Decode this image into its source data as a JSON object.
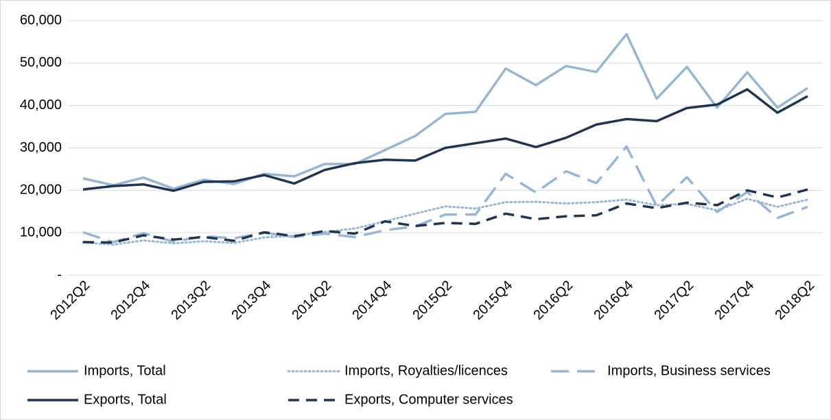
{
  "chart_data": {
    "type": "line",
    "categories": [
      "2012Q2",
      null,
      "2012Q4",
      null,
      "2013Q2",
      null,
      "2013Q4",
      null,
      "2014Q2",
      null,
      "2014Q4",
      null,
      "2015Q2",
      null,
      "2015Q4",
      null,
      "2016Q2",
      null,
      "2016Q4",
      null,
      "2017Q2",
      null,
      "2017Q4",
      null,
      "2018Q2"
    ],
    "ylim": [
      0,
      60000
    ],
    "yticks": [
      {
        "value": 0,
        "label": "-"
      },
      {
        "value": 10000,
        "label": "10,000"
      },
      {
        "value": 20000,
        "label": "20,000"
      },
      {
        "value": 30000,
        "label": "30,000"
      },
      {
        "value": 40000,
        "label": "40,000"
      },
      {
        "value": 50000,
        "label": "50,000"
      },
      {
        "value": 60000,
        "label": "60,000"
      }
    ],
    "grid": true,
    "legend": "bottom",
    "series": [
      {
        "name": "Imports, Total",
        "color": "#97b5d4",
        "dash": "solid",
        "values": [
          22800,
          21200,
          23000,
          20400,
          22500,
          21500,
          23900,
          23300,
          26200,
          26200,
          29500,
          32800,
          38000,
          38500,
          48700,
          44800,
          49300,
          47900,
          56800,
          41600,
          49100,
          39500,
          47800,
          39500,
          44100
        ]
      },
      {
        "name": "Imports, Royalties/licences",
        "color": "#97b5d4",
        "dash": "dotted",
        "values": [
          7700,
          7200,
          8200,
          7500,
          8000,
          7600,
          8900,
          9300,
          10200,
          11000,
          12700,
          14500,
          16200,
          15700,
          17200,
          17300,
          16900,
          17200,
          17800,
          16500,
          16800,
          15300,
          18000,
          16100,
          17800
        ]
      },
      {
        "name": "Imports, Business services",
        "color": "#97b5d4",
        "dash": "longdash",
        "values": [
          10100,
          7800,
          9900,
          7900,
          9200,
          8700,
          10000,
          9000,
          9800,
          9000,
          10600,
          11500,
          14300,
          14300,
          23900,
          19500,
          24500,
          21700,
          30300,
          16300,
          23100,
          14900,
          19600,
          13500,
          16100
        ]
      },
      {
        "name": "Exports, Total",
        "color": "#1f3552",
        "dash": "solid",
        "values": [
          20200,
          21000,
          21400,
          19900,
          22000,
          22100,
          23600,
          21600,
          24800,
          26400,
          27200,
          27000,
          30000,
          31100,
          32200,
          30200,
          32400,
          35500,
          36800,
          36300,
          39400,
          40200,
          43800,
          38300,
          42200
        ]
      },
      {
        "name": "Exports, Computer services",
        "color": "#1f3552",
        "dash": "dash",
        "values": [
          7800,
          7700,
          9400,
          8400,
          9000,
          8100,
          10100,
          9200,
          10400,
          9800,
          12700,
          11600,
          12300,
          12100,
          14500,
          13200,
          13900,
          14100,
          16900,
          15800,
          17100,
          16500,
          20000,
          18300,
          20200
        ]
      }
    ]
  }
}
